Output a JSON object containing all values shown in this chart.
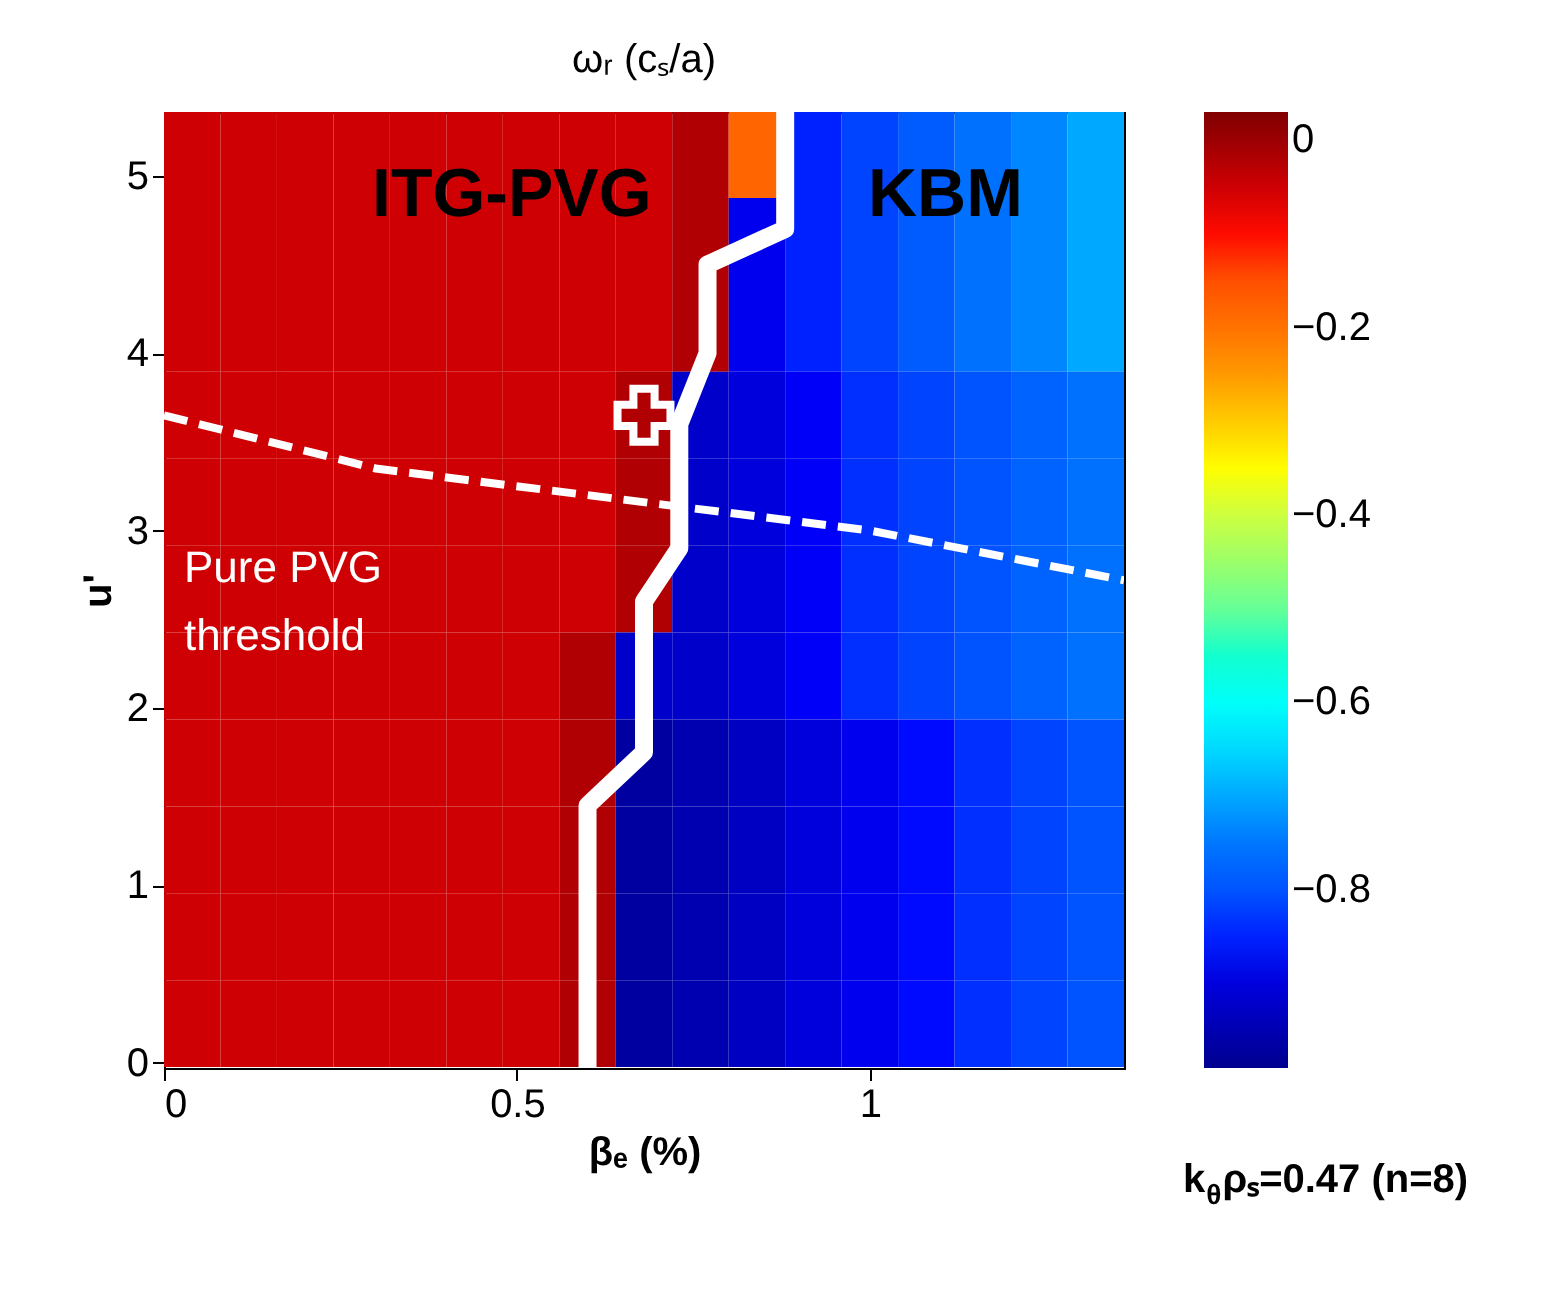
{
  "chart_data": {
    "type": "heatmap",
    "title": "ωᵣ (cₛ/a)",
    "xlabel": "βₑ (%)",
    "ylabel": "u'",
    "x": [
      0.04,
      0.12,
      0.2,
      0.28,
      0.36,
      0.44,
      0.52,
      0.6,
      0.68,
      0.76,
      0.84,
      0.92,
      1.0,
      1.08,
      1.16,
      1.24,
      1.32
    ],
    "y": [
      5.12,
      4.63,
      4.14,
      3.65,
      3.16,
      2.67,
      2.18,
      1.69,
      1.2,
      0.71,
      0.22
    ],
    "xlim": [
      0,
      1.36
    ],
    "ylim": [
      -0.03,
      5.36
    ],
    "xticks": [
      0,
      0.5,
      1
    ],
    "yticks": [
      0,
      1,
      2,
      3,
      4,
      5
    ],
    "clim": [
      -0.99,
      0.03
    ],
    "cticks": [
      0,
      -0.2,
      -0.4,
      -0.6,
      -0.8
    ],
    "cells": [
      [
        -0.05,
        -0.05,
        -0.05,
        -0.05,
        -0.05,
        -0.05,
        -0.05,
        -0.05,
        -0.05,
        -0.02,
        -0.18,
        -0.85,
        -0.82,
        -0.79,
        -0.76,
        -0.73,
        -0.7
      ],
      [
        -0.05,
        -0.05,
        -0.05,
        -0.05,
        -0.05,
        -0.05,
        -0.05,
        -0.05,
        -0.05,
        -0.02,
        -0.88,
        -0.85,
        -0.82,
        -0.79,
        -0.76,
        -0.73,
        -0.7
      ],
      [
        -0.05,
        -0.05,
        -0.05,
        -0.05,
        -0.05,
        -0.05,
        -0.05,
        -0.05,
        -0.05,
        -0.02,
        -0.88,
        -0.85,
        -0.82,
        -0.79,
        -0.76,
        -0.73,
        -0.7
      ],
      [
        -0.05,
        -0.05,
        -0.05,
        -0.05,
        -0.05,
        -0.05,
        -0.05,
        -0.05,
        -0.02,
        -0.92,
        -0.9,
        -0.87,
        -0.84,
        -0.82,
        -0.8,
        -0.78,
        -0.76
      ],
      [
        -0.05,
        -0.05,
        -0.05,
        -0.05,
        -0.05,
        -0.05,
        -0.05,
        -0.05,
        -0.02,
        -0.92,
        -0.9,
        -0.87,
        -0.84,
        -0.82,
        -0.8,
        -0.78,
        -0.76
      ],
      [
        -0.05,
        -0.05,
        -0.05,
        -0.05,
        -0.05,
        -0.05,
        -0.05,
        -0.05,
        -0.02,
        -0.92,
        -0.9,
        -0.87,
        -0.84,
        -0.82,
        -0.8,
        -0.78,
        -0.76
      ],
      [
        -0.05,
        -0.05,
        -0.05,
        -0.05,
        -0.05,
        -0.05,
        -0.05,
        -0.02,
        -0.92,
        -0.92,
        -0.9,
        -0.87,
        -0.84,
        -0.82,
        -0.8,
        -0.78,
        -0.76
      ],
      [
        -0.05,
        -0.05,
        -0.05,
        -0.05,
        -0.05,
        -0.05,
        -0.05,
        -0.02,
        -0.97,
        -0.95,
        -0.93,
        -0.9,
        -0.88,
        -0.86,
        -0.84,
        -0.82,
        -0.8
      ],
      [
        -0.05,
        -0.05,
        -0.05,
        -0.05,
        -0.05,
        -0.05,
        -0.05,
        -0.02,
        -0.97,
        -0.95,
        -0.93,
        -0.9,
        -0.88,
        -0.86,
        -0.84,
        -0.82,
        -0.8
      ],
      [
        -0.05,
        -0.05,
        -0.05,
        -0.05,
        -0.05,
        -0.05,
        -0.05,
        -0.02,
        -0.97,
        -0.95,
        -0.93,
        -0.9,
        -0.88,
        -0.86,
        -0.84,
        -0.82,
        -0.8
      ],
      [
        -0.05,
        -0.05,
        -0.05,
        -0.05,
        -0.05,
        -0.05,
        -0.05,
        -0.02,
        -0.97,
        -0.95,
        -0.93,
        -0.9,
        -0.88,
        -0.86,
        -0.84,
        -0.82,
        -0.8
      ]
    ],
    "series": [
      {
        "type": "line",
        "color": "#ffffff",
        "line_style": "dashed",
        "x": [
          0,
          0.3,
          0.6,
          1.0,
          1.36
        ],
        "values": [
          3.65,
          3.35,
          3.2,
          3.0,
          2.72
        ]
      },
      {
        "type": "line",
        "color": "#ffffff",
        "line_style": "solid",
        "x": [
          0.6,
          0.6,
          0.68,
          0.68,
          0.73,
          0.73,
          0.77,
          0.77,
          0.88,
          0.88
        ],
        "values": [
          -0.03,
          1.45,
          1.75,
          2.6,
          2.9,
          3.6,
          4.0,
          4.5,
          4.7,
          5.36
        ]
      },
      {
        "type": "scatter",
        "color": "#ffffff",
        "marker": "cross",
        "x": [
          0.68
        ],
        "values": [
          3.65
        ]
      }
    ],
    "annotations": [
      "ITG-PVG",
      "KBM",
      "Pure PVG\nthreshold",
      "k$_{θ}$ρₛ=0.47 (n=8)"
    ]
  }
}
